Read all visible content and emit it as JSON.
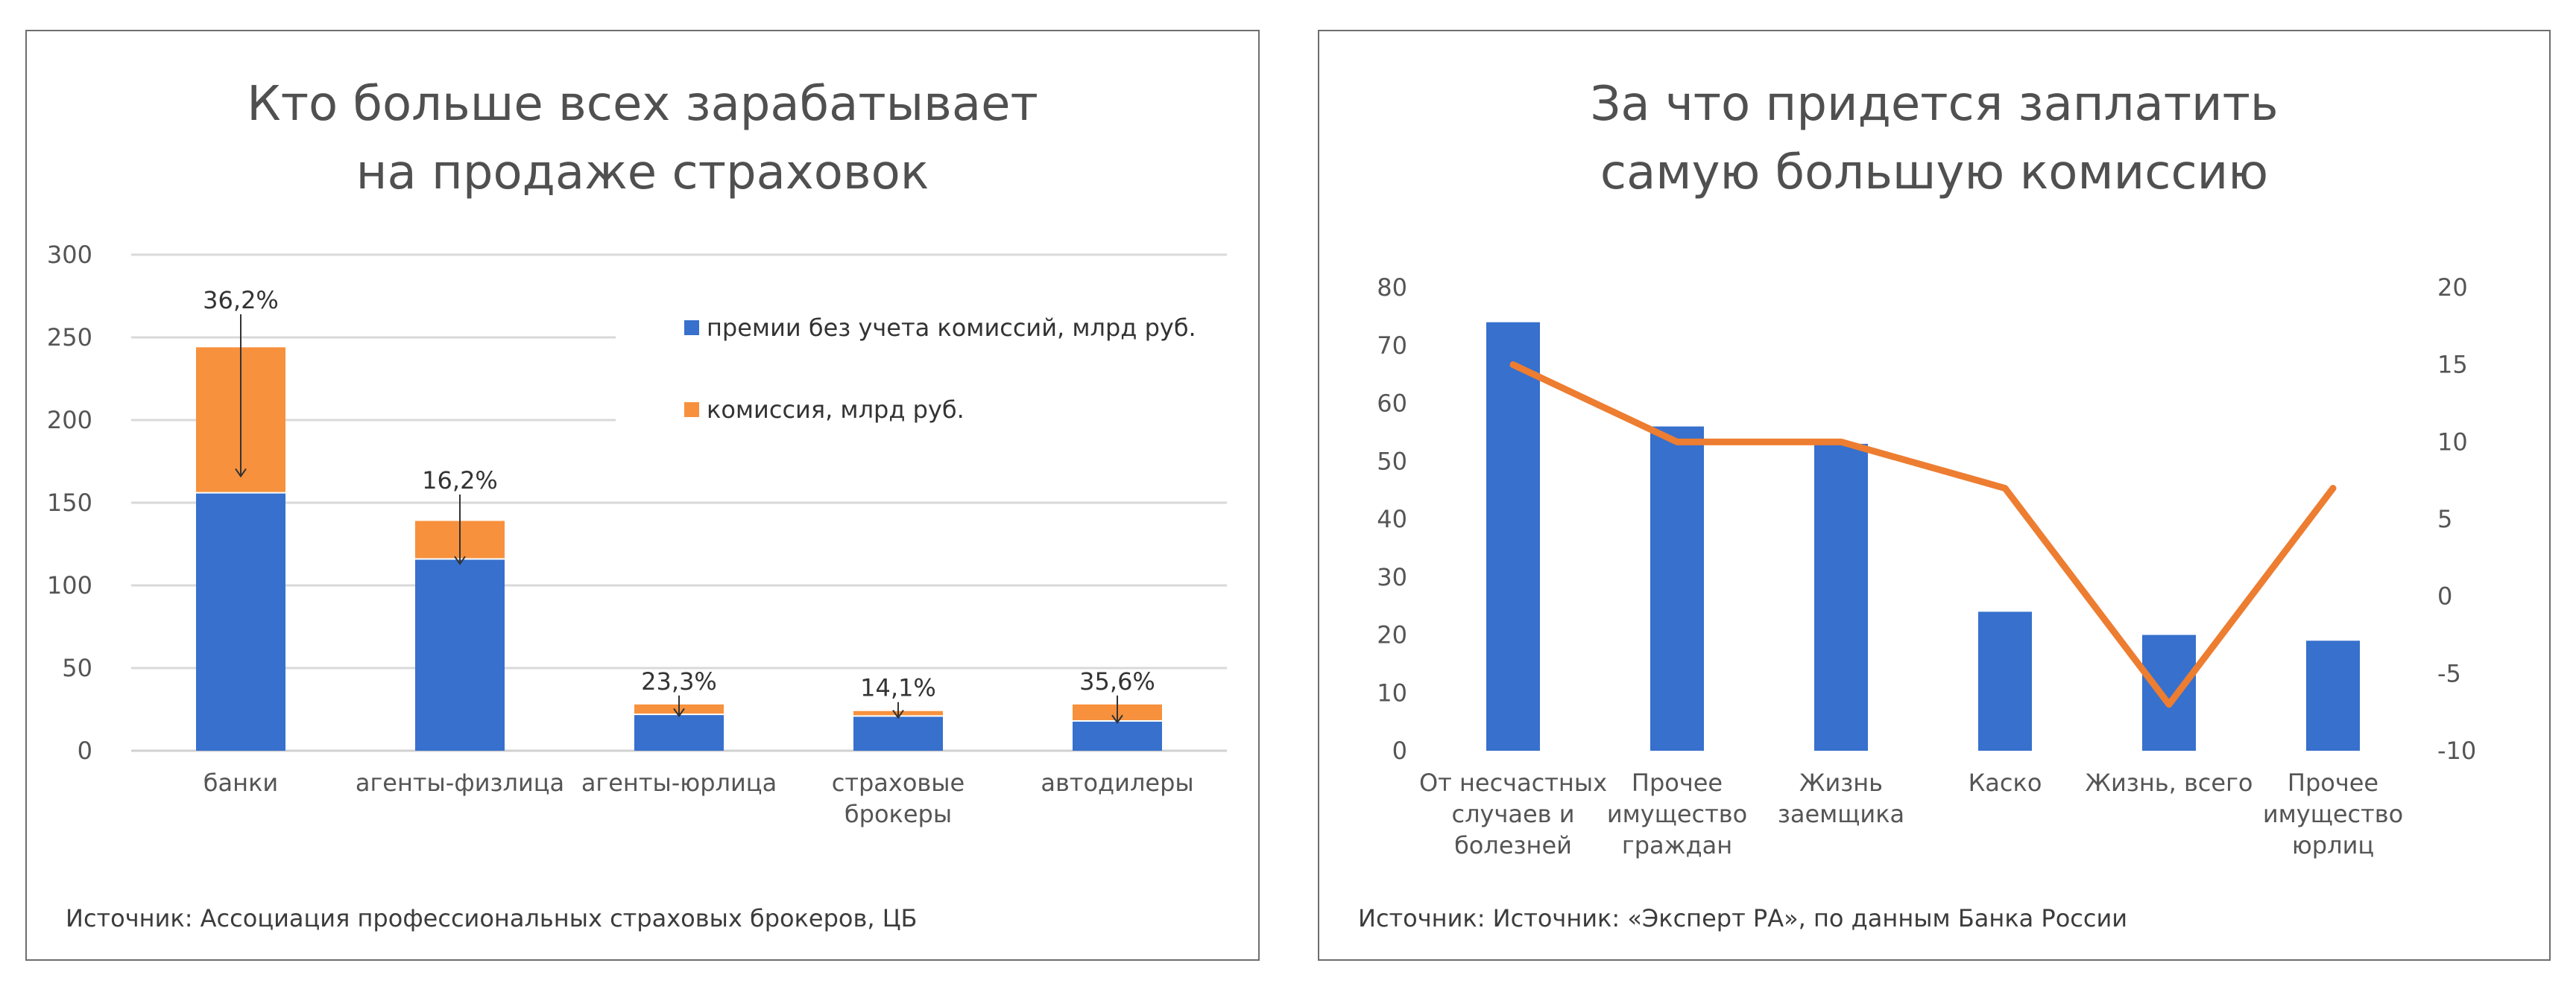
{
  "colors": {
    "primary": "#3770cd",
    "secondary": "#f7913d",
    "grid": "#d9d9d9",
    "axis_text": "#555555",
    "label_text": "#333333"
  },
  "left": {
    "title_lines": [
      "Кто больше всех зарабатывает",
      "на продаже страховок"
    ],
    "source": "Источник: Ассоциация профессиональных страховых брокеров, ЦБ",
    "legend": [
      {
        "label": "премии без учета комиссий, млрд руб.",
        "color": "#3770cd"
      },
      {
        "label": "комиссия, млрд руб.",
        "color": "#f7913d"
      }
    ]
  },
  "right": {
    "title_lines": [
      "За что придется заплатить",
      "самую большую комиссию"
    ],
    "source": "Источник: Источник: «Эксперт РА», по данным Банка России"
  },
  "chart_data": [
    {
      "type": "bar",
      "stacked": true,
      "title": "Кто больше всех зарабатывает на продаже страховок",
      "categories": [
        "банки",
        "агенты-физлица",
        "агенты-юрлица",
        "страховые брокеры",
        "автодилеры"
      ],
      "category_lines": [
        [
          "банки"
        ],
        [
          "агенты-физлица"
        ],
        [
          "агенты-юрлица"
        ],
        [
          "страховые",
          "брокеры"
        ],
        [
          "автодилеры"
        ]
      ],
      "series": [
        {
          "name": "премии без учета комиссий, млрд руб.",
          "values": [
            156,
            116,
            22,
            21,
            18
          ],
          "color": "#3770cd"
        },
        {
          "name": "комиссия, млрд руб.",
          "values": [
            88,
            23,
            6,
            3,
            10
          ],
          "color": "#f7913d"
        }
      ],
      "annotations": [
        "36,2%",
        "16,2%",
        "23,3%",
        "14,1%",
        "35,6%"
      ],
      "ylim": [
        0,
        300
      ],
      "yticks": [
        0,
        50,
        100,
        150,
        200,
        250,
        300
      ],
      "grid": true,
      "legend_position": "top-right"
    },
    {
      "type": "bar",
      "title": "За что придется заплатить самую большую комиссию",
      "categories": [
        "От несчастных случаев и болезней",
        "Прочее имущество граждан",
        "Жизнь заемщика",
        "Каско",
        "Жизнь, всего",
        "Прочее имущество юрлиц"
      ],
      "category_lines": [
        [
          "От несчастных",
          "случаев и",
          "болезней"
        ],
        [
          "Прочее",
          "имущество",
          "граждан"
        ],
        [
          "Жизнь",
          "заемщика"
        ],
        [
          "Каско"
        ],
        [
          "Жизнь, всего"
        ],
        [
          "Прочее",
          "имущество",
          "юрлиц"
        ]
      ],
      "series": [
        {
          "type": "bar",
          "axis": "left",
          "values": [
            74,
            56,
            53,
            24,
            20,
            19
          ],
          "color": "#3770cd"
        },
        {
          "type": "line",
          "axis": "right",
          "values": [
            15,
            10,
            10,
            7,
            -7,
            7
          ],
          "color": "#ed7d31"
        }
      ],
      "ylim": [
        0,
        80
      ],
      "yticks": [
        0,
        10,
        20,
        30,
        40,
        50,
        60,
        70,
        80
      ],
      "y2lim": [
        -10,
        20
      ],
      "y2ticks": [
        -10,
        -5,
        0,
        5,
        10,
        15,
        20
      ],
      "grid": false,
      "legend_position": "none"
    }
  ]
}
